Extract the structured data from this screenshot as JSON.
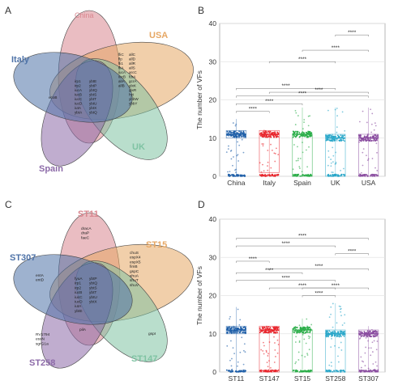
{
  "panels": {
    "a": {
      "letter": "A",
      "sets": [
        {
          "name": "China",
          "color": "#d9878f"
        },
        {
          "name": "USA",
          "color": "#e6a764"
        },
        {
          "name": "UK",
          "color": "#7fc3a3"
        },
        {
          "name": "Spain",
          "color": "#8c6aa8"
        },
        {
          "name": "Italy",
          "color": "#4f73a8"
        }
      ],
      "genes": {
        "usa": [
          "fliC",
          "flp",
          "fli1",
          "fliA",
          "iucA",
          "iucB",
          "allA",
          "allB"
        ],
        "usa2": [
          "allC",
          "allD",
          "allR",
          "allS",
          "arcC",
          "fdrA",
          "gcrA",
          "glxK",
          "glxR",
          "hyi",
          "ybbW",
          "ybbY"
        ],
        "italy": [
          "ecoB"
        ],
        "core1": [
          "irp1",
          "irp2",
          "iucA",
          "iucB",
          "iucC",
          "iucD",
          "iutA",
          "ybtA"
        ],
        "core2": [
          "ybtE",
          "ybtP",
          "ybtQ",
          "ybtS",
          "ybtT",
          "ybtU",
          "ybtX",
          "ybtQ"
        ]
      }
    },
    "b": {
      "letter": "B",
      "chart_data": {
        "type": "box",
        "title": "",
        "xlabel": "",
        "ylabel": "The number of VFs",
        "ylim": [
          0,
          40
        ],
        "yticks": [
          0,
          10,
          20,
          30,
          40
        ],
        "grid": true,
        "categories": [
          "China",
          "Italy",
          "Spain",
          "UK",
          "USA"
        ],
        "colors": [
          "#1f5fa8",
          "#e8262d",
          "#2cae4a",
          "#2aa7c9",
          "#8a4da0"
        ],
        "boxes": [
          {
            "min": 0,
            "q1": 10,
            "median": 11,
            "q3": 12,
            "max": 15
          },
          {
            "min": 0,
            "q1": 1,
            "median": 11,
            "q3": 12,
            "max": 12
          },
          {
            "min": 0,
            "q1": 0,
            "median": 11,
            "q3": 11,
            "max": 18
          },
          {
            "min": 0,
            "q1": 0,
            "median": 10,
            "q3": 11,
            "max": 18
          },
          {
            "min": 0,
            "q1": 0,
            "median": 10,
            "q3": 11,
            "max": 18
          }
        ],
        "significance": [
          {
            "pair": [
              "UK",
              "USA"
            ],
            "label": "****",
            "y": 37
          },
          {
            "pair": [
              "Spain",
              "USA"
            ],
            "label": "****",
            "y": 33
          },
          {
            "pair": [
              "Italy",
              "UK"
            ],
            "label": "****",
            "y": 30
          },
          {
            "pair": [
              "China",
              "UK"
            ],
            "label": "****",
            "y": 23
          },
          {
            "pair": [
              "Italy",
              "USA"
            ],
            "label": "****",
            "y": 22
          },
          {
            "pair": [
              "China",
              "USA"
            ],
            "label": "****",
            "y": 21
          },
          {
            "pair": [
              "China",
              "Spain"
            ],
            "label": "****",
            "y": 19
          },
          {
            "pair": [
              "China",
              "Italy"
            ],
            "label": "****",
            "y": 17
          }
        ]
      }
    },
    "c": {
      "letter": "C",
      "sets": [
        {
          "name": "ST11",
          "color": "#d9878f"
        },
        {
          "name": "ST15",
          "color": "#e6a764"
        },
        {
          "name": "ST147",
          "color": "#7fc3a3"
        },
        {
          "name": "ST258",
          "color": "#8c6aa8"
        },
        {
          "name": "ST307",
          "color": "#4f73a8"
        }
      ],
      "genes": {
        "st11": [
          "dracA",
          "draP",
          "faeC"
        ],
        "st15": [
          "chuS",
          "espX4",
          "espX5",
          "fimB",
          "gspC",
          "shuA",
          "shuT",
          "shuV"
        ],
        "st307": [
          "entA",
          "entD"
        ],
        "core1": [
          "fyuA",
          "irp1",
          "irp2",
          "iucB",
          "iucC",
          "iucD",
          "iutA",
          "ybtE"
        ],
        "core2": [
          "ybtP",
          "ybtQ",
          "ybtS",
          "ybtT",
          "ybtU",
          "ybtX"
        ],
        "st258": [
          "RV1794",
          "esxN",
          "sgrG1a"
        ],
        "st147": [
          "gspI"
        ],
        "shared": [
          "pilA"
        ]
      }
    },
    "d": {
      "letter": "D",
      "chart_data": {
        "type": "box",
        "title": "",
        "xlabel": "",
        "ylabel": "The number of VFs",
        "ylim": [
          0,
          40
        ],
        "yticks": [
          0,
          10,
          20,
          30,
          40
        ],
        "grid": true,
        "categories": [
          "ST11",
          "ST147",
          "ST15",
          "ST258",
          "ST307"
        ],
        "colors": [
          "#1f5fa8",
          "#e8262d",
          "#2cae4a",
          "#2aa7c9",
          "#8a4da0"
        ],
        "boxes": [
          {
            "min": 0,
            "q1": 10,
            "median": 11,
            "q3": 12,
            "max": 17
          },
          {
            "min": 0,
            "q1": 0,
            "median": 11,
            "q3": 12,
            "max": 12
          },
          {
            "min": 0,
            "q1": 0,
            "median": 11,
            "q3": 11,
            "max": 14
          },
          {
            "min": 0,
            "q1": 0,
            "median": 10,
            "q3": 11,
            "max": 18
          },
          {
            "min": 0,
            "q1": 0,
            "median": 10,
            "q3": 11,
            "max": 12
          }
        ],
        "significance": [
          {
            "pair": [
              "ST11",
              "ST307"
            ],
            "label": "****",
            "y": 35
          },
          {
            "pair": [
              "ST11",
              "ST258"
            ],
            "label": "****",
            "y": 33
          },
          {
            "pair": [
              "ST258",
              "ST307"
            ],
            "label": "****",
            "y": 31
          },
          {
            "pair": [
              "ST11",
              "ST147"
            ],
            "label": "****",
            "y": 29
          },
          {
            "pair": [
              "ST147",
              "ST307"
            ],
            "label": "****",
            "y": 27
          },
          {
            "pair": [
              "ST11",
              "ST15"
            ],
            "label": "****",
            "y": 26
          },
          {
            "pair": [
              "ST11",
              "ST258"
            ],
            "label": "****",
            "y": 24
          },
          {
            "pair": [
              "ST147",
              "ST258"
            ],
            "label": "****",
            "y": 22
          },
          {
            "pair": [
              "ST15",
              "ST258"
            ],
            "label": "****",
            "y": 20
          },
          {
            "pair": [
              "ST15",
              "ST307"
            ],
            "label": "****",
            "y": 22
          }
        ]
      }
    }
  }
}
